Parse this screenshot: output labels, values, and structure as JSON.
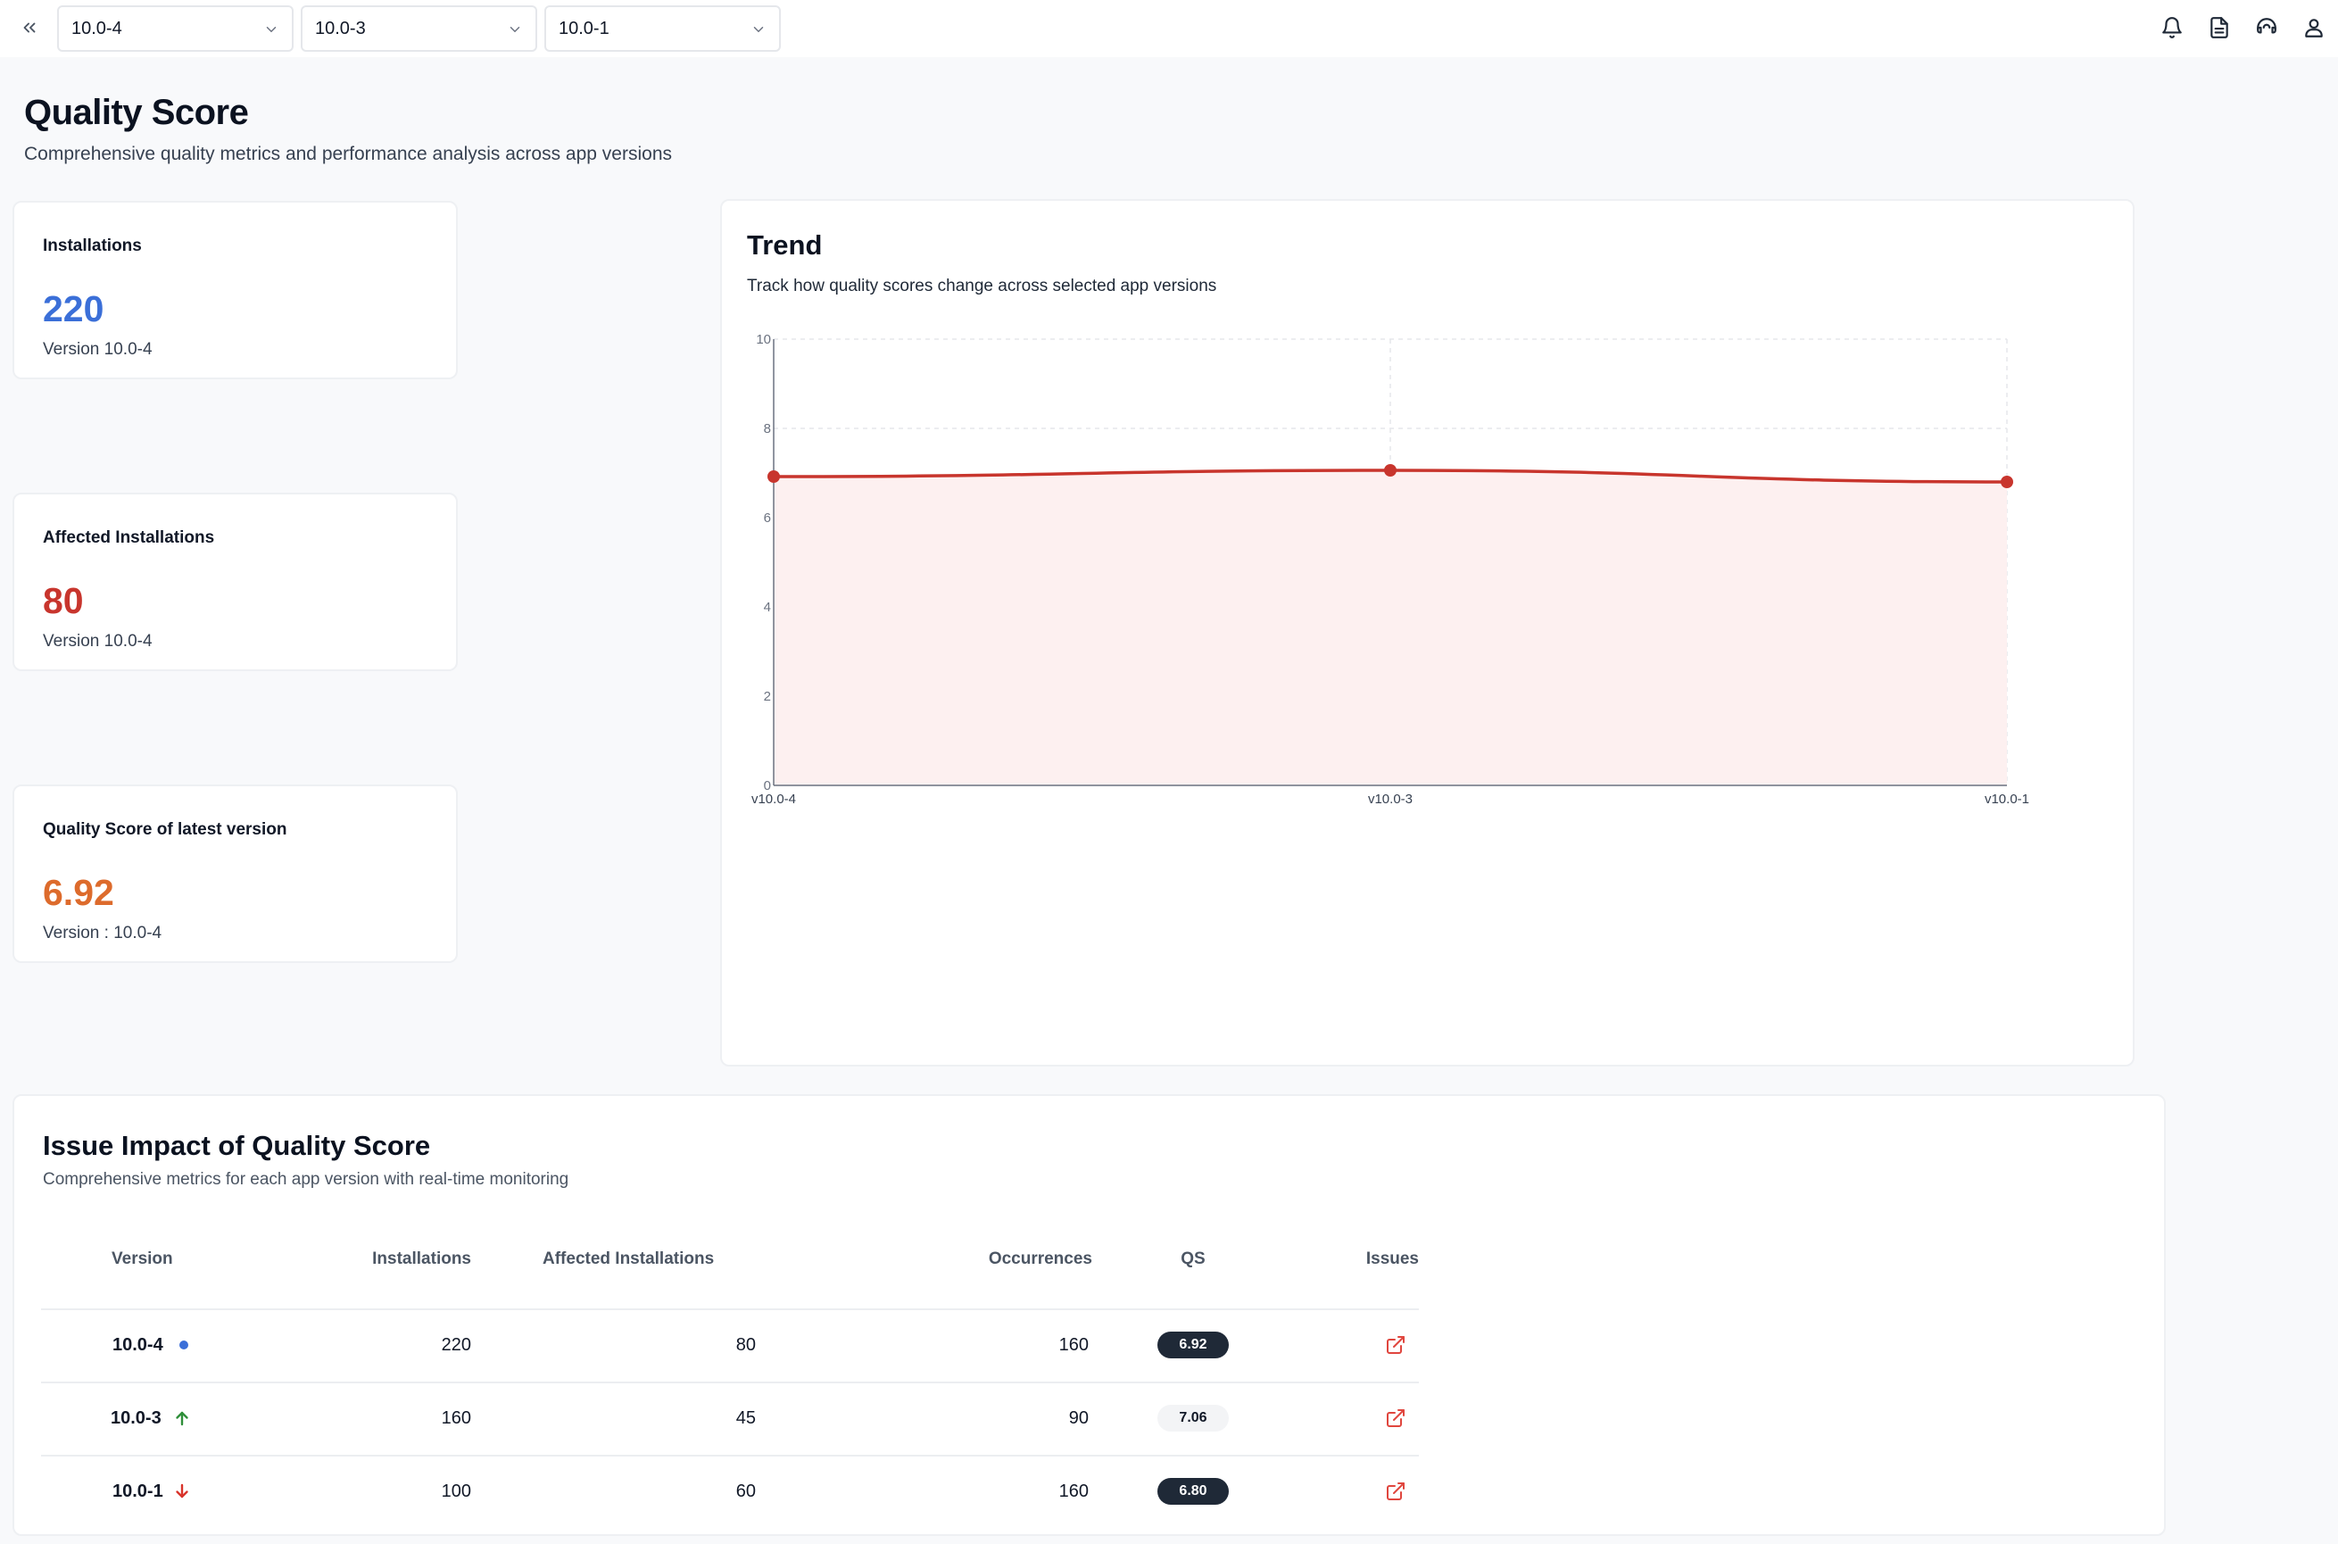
{
  "toolbar": {
    "collapse_icon": "double-chevron-left-icon",
    "version_filters": [
      "10.0-4",
      "10.0-3",
      "10.0-1"
    ],
    "icons": [
      "bell-icon",
      "document-icon",
      "headset-icon",
      "user-icon"
    ]
  },
  "header": {
    "title": "Quality Score",
    "subtitle": "Comprehensive quality metrics and performance analysis across app versions"
  },
  "stats": [
    {
      "label": "Installations",
      "value": "220",
      "sub": "Version 10.0-4",
      "color": "#3b6fd8"
    },
    {
      "label": "Affected Installations",
      "value": "80",
      "sub": "Version 10.0-4",
      "color": "#c8352d"
    },
    {
      "label": "Quality Score of latest version",
      "value": "6.92",
      "sub": "Version : 10.0-4",
      "color": "#dd6b2c"
    }
  ],
  "trend": {
    "title": "Trend",
    "subtitle": "Track how quality scores change across selected app versions"
  },
  "chart_data": {
    "type": "area",
    "categories": [
      "v10.0-4",
      "v10.0-3",
      "v10.0-1"
    ],
    "values": [
      6.92,
      7.06,
      6.8
    ],
    "ylim": [
      0,
      10
    ],
    "yticks": [
      "0",
      "2",
      "4",
      "6",
      "8",
      "10"
    ],
    "grid": true,
    "line_color": "#c8352d",
    "fill_color": "#fdf0f0"
  },
  "impact": {
    "title": "Issue Impact of Quality Score",
    "subtitle": "Comprehensive metrics for each app version with real-time monitoring",
    "columns": [
      "Version",
      "Installations",
      "Affected Installations",
      "Occurrences",
      "QS",
      "Issues"
    ],
    "rows": [
      {
        "version": "10.0-4",
        "status": "dot",
        "installations": "220",
        "affected": "80",
        "occurrences": "160",
        "qs": "6.92",
        "qs_style": "dark"
      },
      {
        "version": "10.0-3",
        "status": "up",
        "installations": "160",
        "affected": "45",
        "occurrences": "90",
        "qs": "7.06",
        "qs_style": "light"
      },
      {
        "version": "10.0-1",
        "status": "down",
        "installations": "100",
        "affected": "60",
        "occurrences": "160",
        "qs": "6.80",
        "qs_style": "dark"
      }
    ],
    "status_colors": {
      "dot": "#3b6fd8",
      "up": "#2f8f3a",
      "down": "#d9342b"
    },
    "issue_icon": "external-link-icon",
    "issue_icon_color": "#e0463e"
  }
}
